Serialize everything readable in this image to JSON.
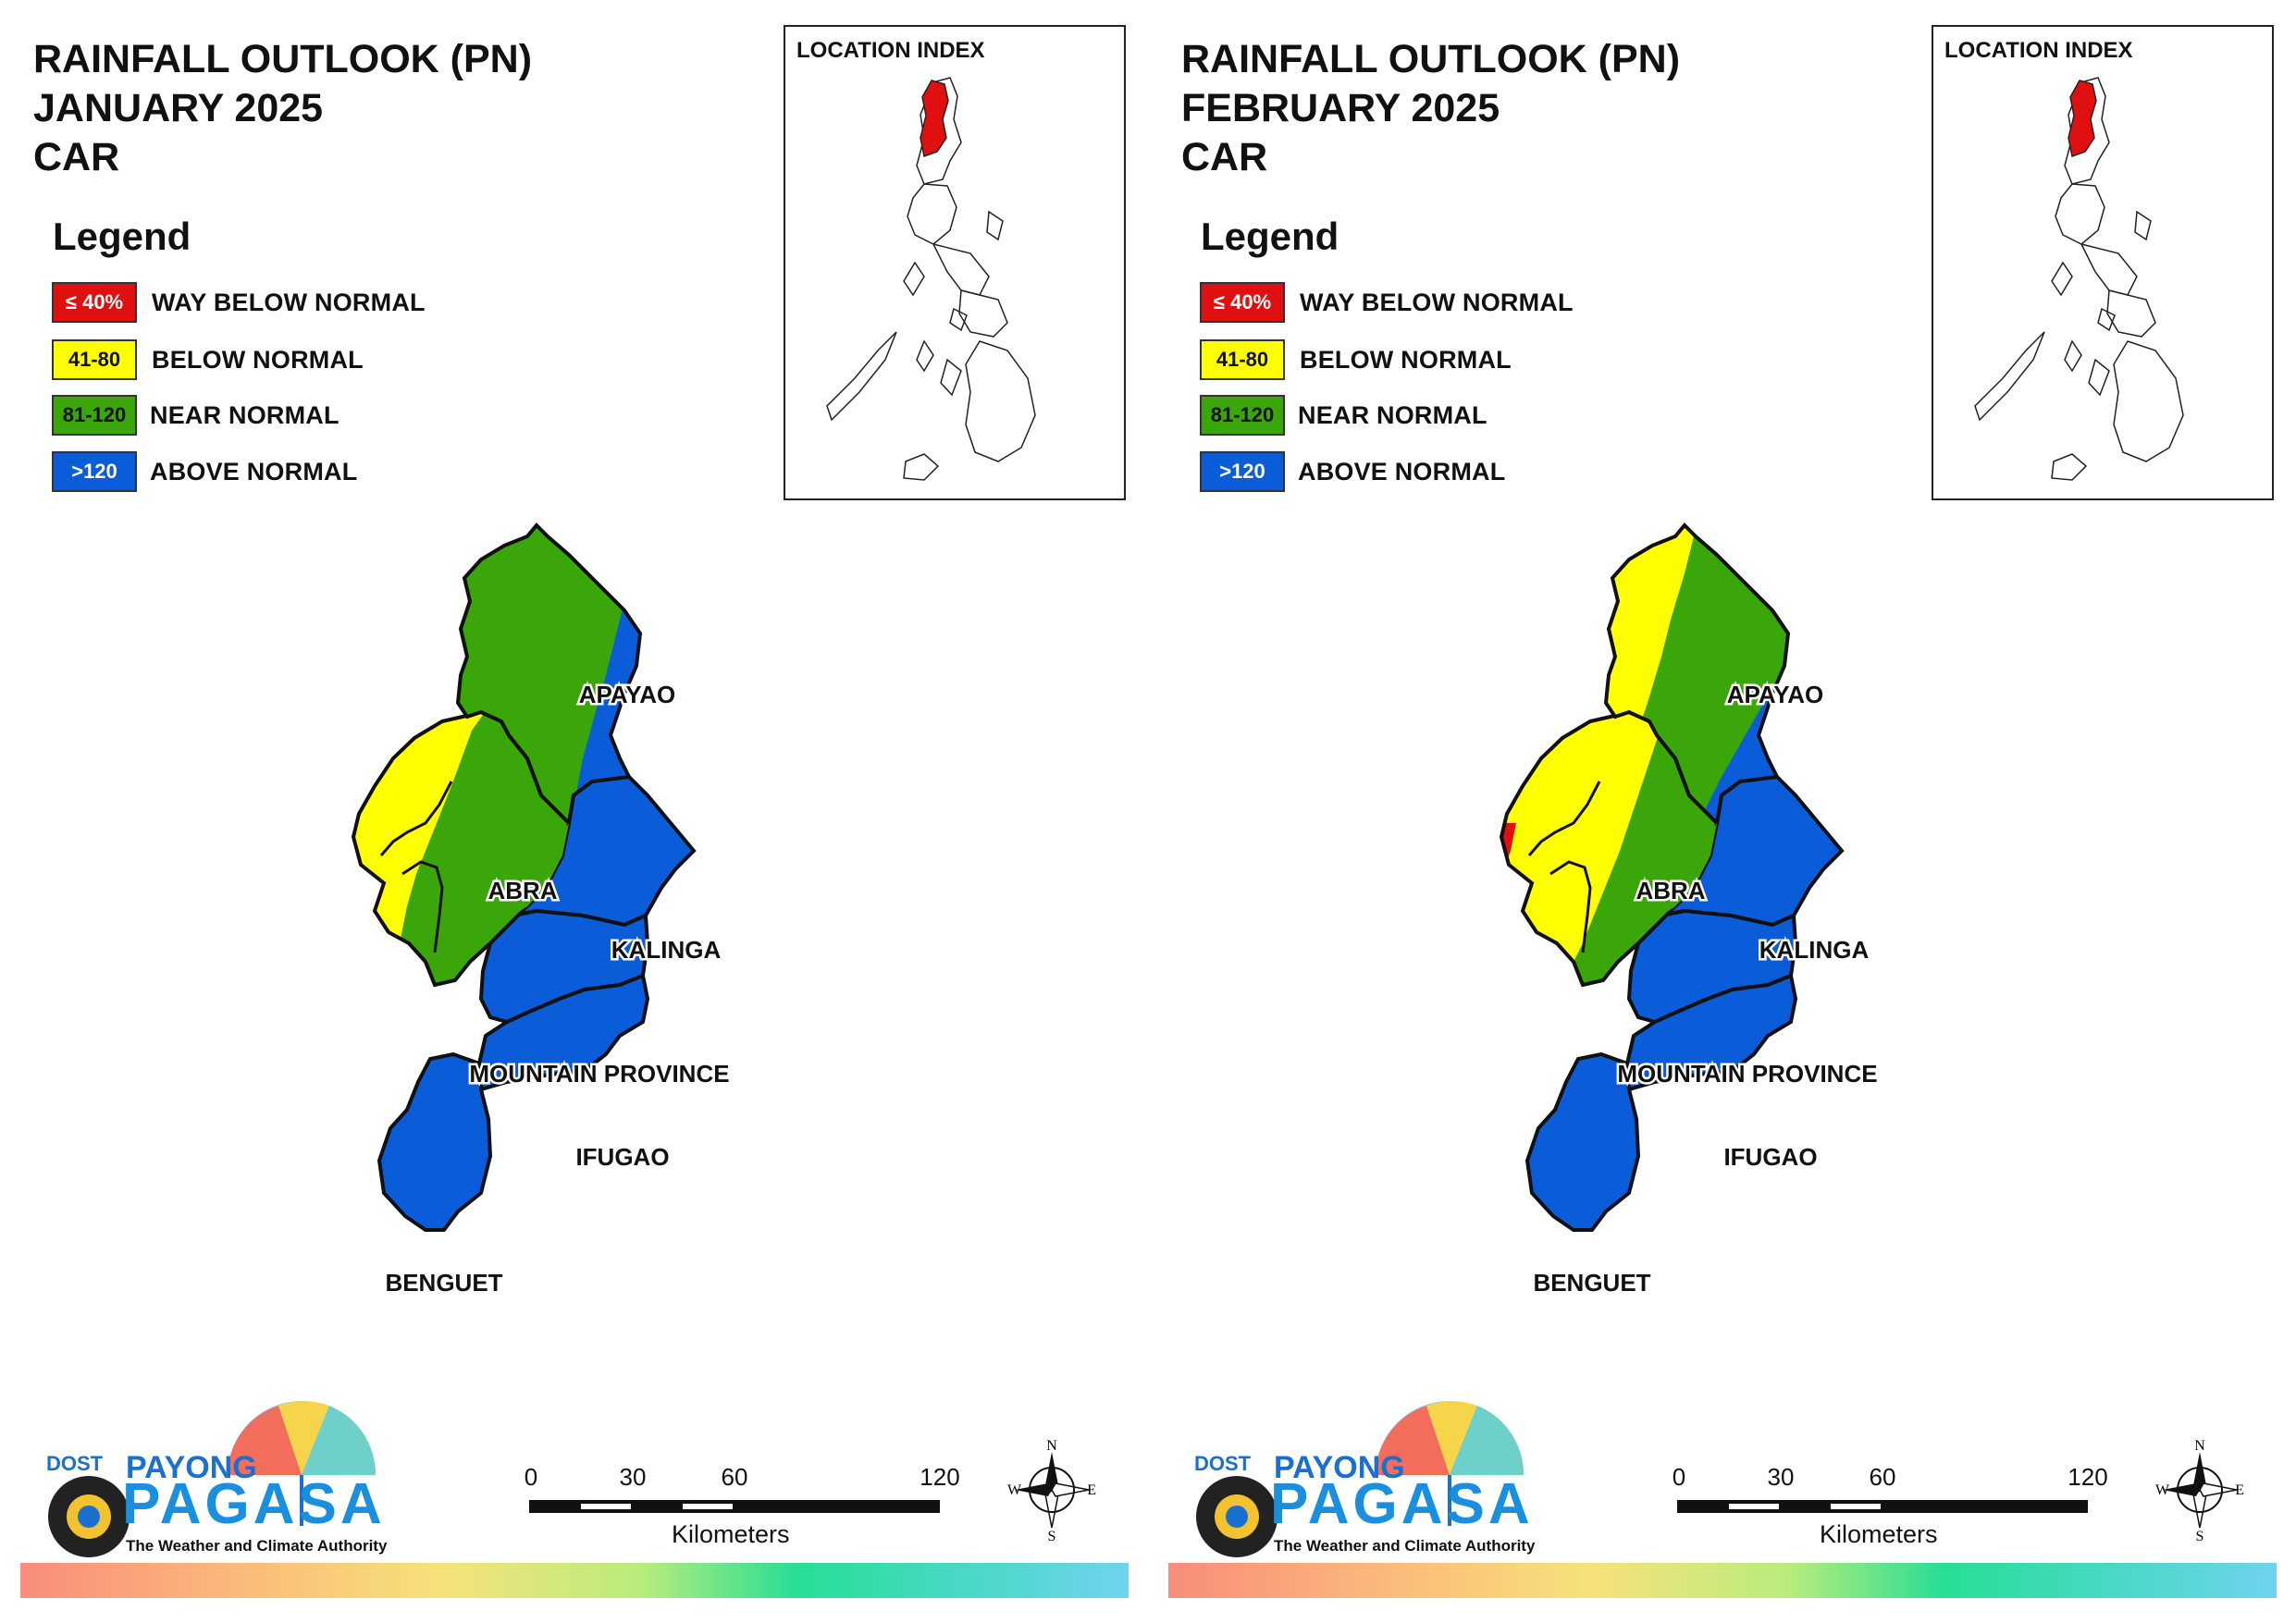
{
  "panels": [
    {
      "title": [
        "RAINFALL OUTLOOK (PN)",
        "JANUARY 2025",
        "CAR"
      ],
      "legend_title": "Legend",
      "legend": [
        {
          "code": "≤ 40%",
          "label": "WAY BELOW NORMAL",
          "color": "#e01010",
          "text_color": "#ffffff"
        },
        {
          "code": "41-80",
          "label": "BELOW NORMAL",
          "color": "#ffff00",
          "text_color": "#111111"
        },
        {
          "code": "81-120",
          "label": "NEAR NORMAL",
          "color": "#3aa60a",
          "text_color": "#111111"
        },
        {
          "code": ">120",
          "label": "ABOVE NORMAL",
          "color": "#0b5cd8",
          "text_color": "#ffffff"
        }
      ],
      "inset_title": "LOCATION INDEX",
      "provinces": [
        {
          "name": "APAYAO",
          "category": "NEAR NORMAL / ABOVE NORMAL"
        },
        {
          "name": "ABRA",
          "category": "BELOW NORMAL / NEAR NORMAL"
        },
        {
          "name": "KALINGA",
          "category": "ABOVE NORMAL"
        },
        {
          "name": "MOUNTAIN PROVINCE",
          "category": "ABOVE NORMAL"
        },
        {
          "name": "IFUGAO",
          "category": "ABOVE NORMAL"
        },
        {
          "name": "BENGUET",
          "category": "ABOVE NORMAL"
        }
      ],
      "scale": {
        "ticks": [
          "0",
          "30",
          "60",
          "120"
        ],
        "unit": "Kilometers"
      },
      "compass": {
        "n": "N",
        "s": "S",
        "e": "E",
        "w": "W"
      },
      "logo": {
        "dost": "DOST",
        "payong": "PAYONG",
        "pagasa": "PAGASA",
        "tagline": "The Weather and Climate Authority"
      }
    },
    {
      "title": [
        "RAINFALL OUTLOOK (PN)",
        "FEBRUARY 2025",
        "CAR"
      ],
      "legend_title": "Legend",
      "legend": [
        {
          "code": "≤ 40%",
          "label": "WAY BELOW NORMAL",
          "color": "#e01010",
          "text_color": "#ffffff"
        },
        {
          "code": "41-80",
          "label": "BELOW NORMAL",
          "color": "#ffff00",
          "text_color": "#111111"
        },
        {
          "code": "81-120",
          "label": "NEAR NORMAL",
          "color": "#3aa60a",
          "text_color": "#111111"
        },
        {
          "code": ">120",
          "label": "ABOVE NORMAL",
          "color": "#0b5cd8",
          "text_color": "#ffffff"
        }
      ],
      "inset_title": "LOCATION INDEX",
      "provinces": [
        {
          "name": "APAYAO",
          "category": "BELOW NORMAL / NEAR NORMAL / ABOVE NORMAL"
        },
        {
          "name": "ABRA",
          "category": "WAY BELOW NORMAL / BELOW NORMAL / NEAR NORMAL"
        },
        {
          "name": "KALINGA",
          "category": "ABOVE NORMAL"
        },
        {
          "name": "MOUNTAIN PROVINCE",
          "category": "ABOVE NORMAL"
        },
        {
          "name": "IFUGAO",
          "category": "ABOVE NORMAL"
        },
        {
          "name": "BENGUET",
          "category": "ABOVE NORMAL"
        }
      ],
      "scale": {
        "ticks": [
          "0",
          "30",
          "60",
          "120"
        ],
        "unit": "Kilometers"
      },
      "compass": {
        "n": "N",
        "s": "S",
        "e": "E",
        "w": "W"
      },
      "logo": {
        "dost": "DOST",
        "payong": "PAYONG",
        "pagasa": "PAGASA",
        "tagline": "The Weather and Climate Authority"
      }
    }
  ]
}
